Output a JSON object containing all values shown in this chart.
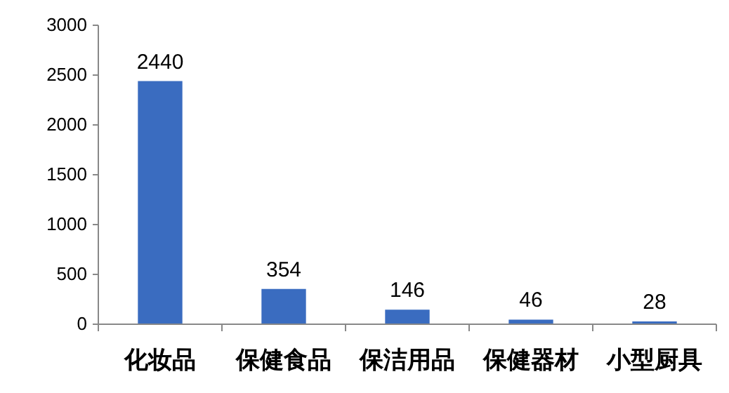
{
  "chart_data": {
    "type": "bar",
    "categories": [
      "化妆品",
      "保健食品",
      "保洁用品",
      "保健器材",
      "小型厨具"
    ],
    "values": [
      2440,
      354,
      146,
      46,
      28
    ],
    "color": "#3a6cc0",
    "ylim": [
      0,
      3000
    ],
    "yticks": [
      0,
      500,
      1000,
      1500,
      2000,
      2500,
      3000
    ],
    "data_labels": true,
    "grid": false
  }
}
